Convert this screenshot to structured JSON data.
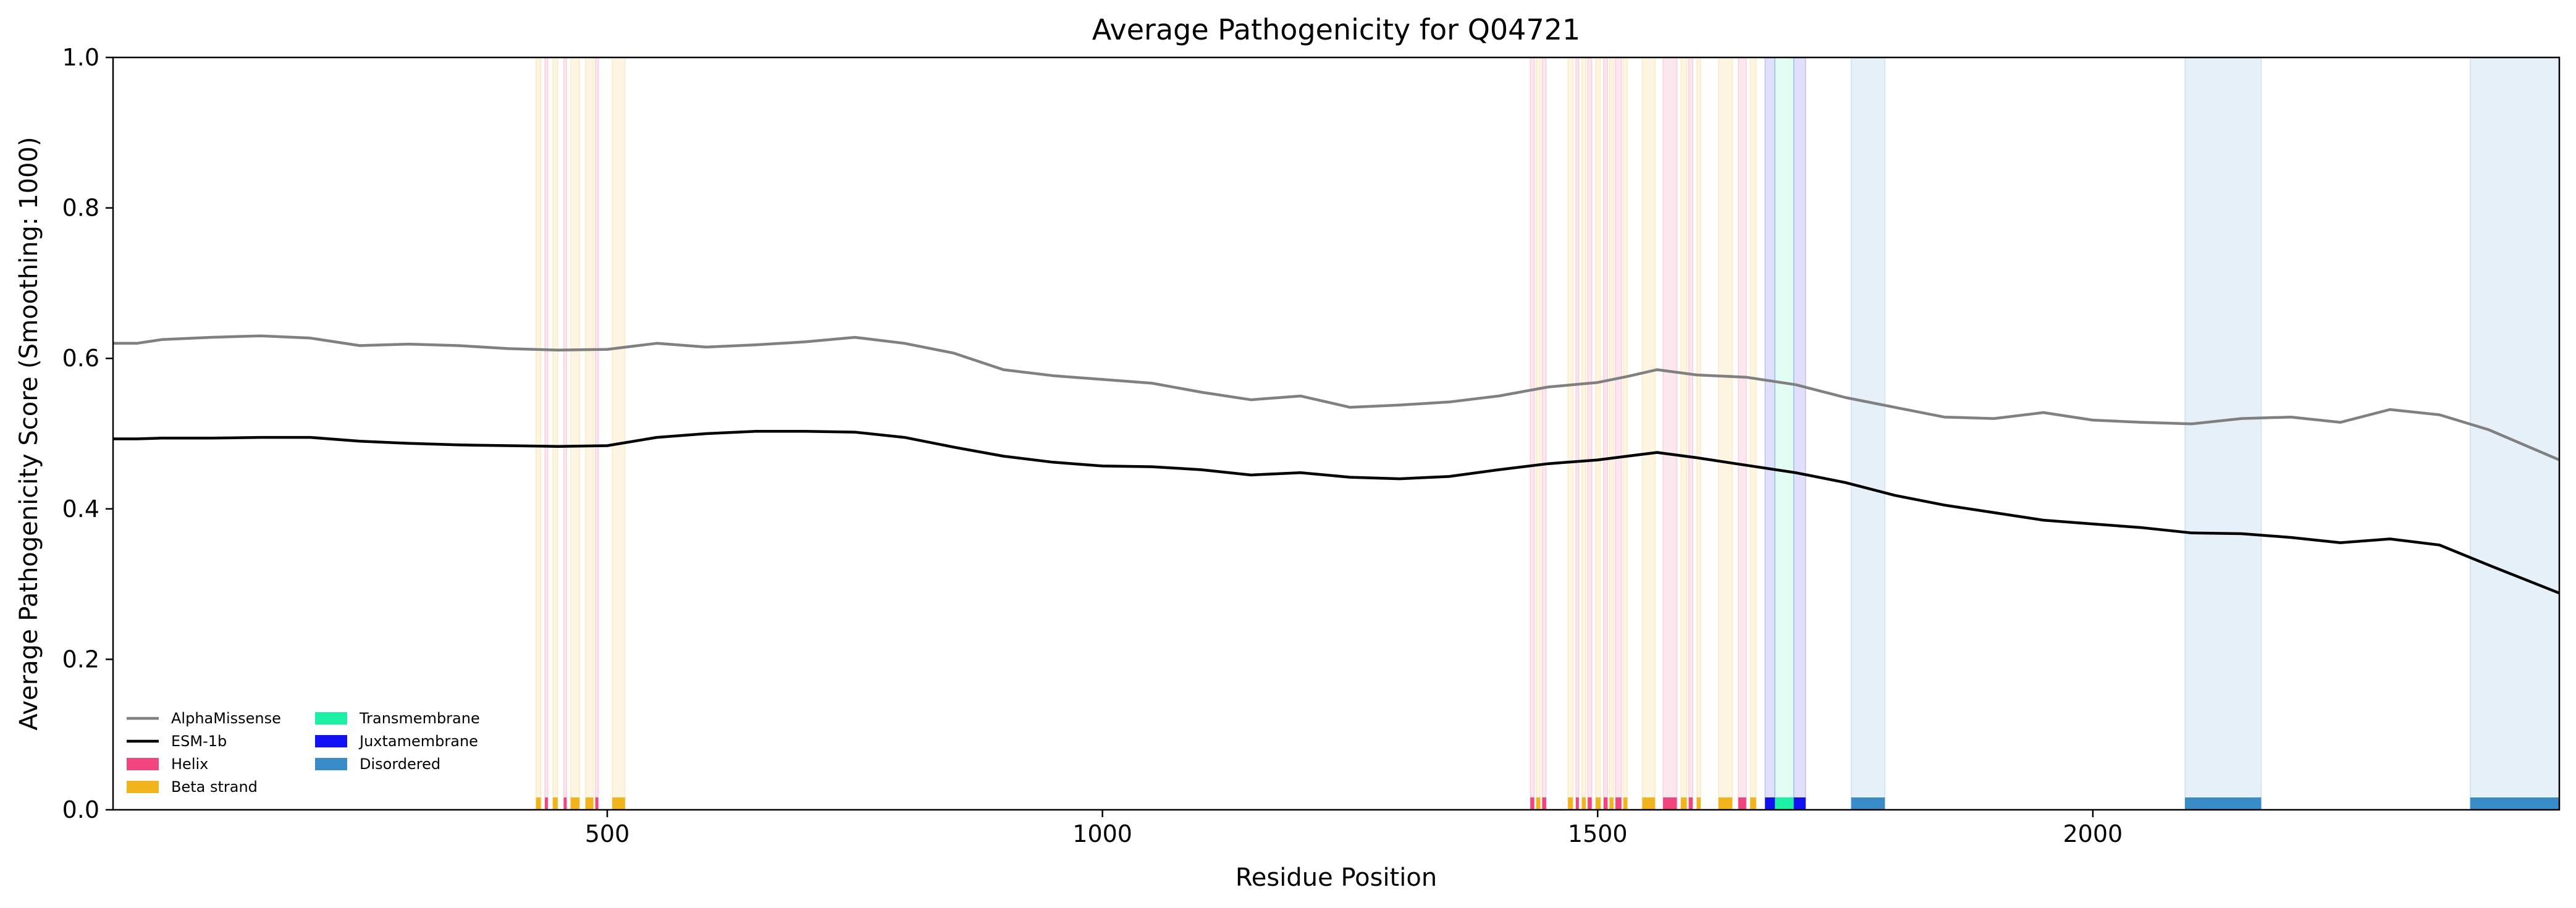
{
  "chart_data": {
    "type": "line",
    "title": "Average Pathogenicity for Q04721",
    "xlabel": "Residue Position",
    "ylabel": "Average Pathogenicity Score (Smoothing: 1000)",
    "xlim": [
      1,
      2471
    ],
    "ylim": [
      0.0,
      1.0
    ],
    "x_ticks": [
      500,
      1000,
      1500,
      2000
    ],
    "y_ticks": [
      0.0,
      0.2,
      0.4,
      0.6,
      0.8,
      1.0
    ],
    "x_tick_labels": [
      "500",
      "1000",
      "1500",
      "2000"
    ],
    "y_tick_labels": [
      "0.0",
      "0.2",
      "0.4",
      "0.6",
      "0.8",
      "1.0"
    ],
    "grid": false,
    "legend_position": "lower-left",
    "series": [
      {
        "name": "AlphaMissense",
        "color": "#808080",
        "x": [
          1,
          25,
          50,
          100,
          150,
          200,
          250,
          300,
          350,
          400,
          450,
          500,
          550,
          600,
          650,
          700,
          750,
          800,
          850,
          900,
          950,
          1000,
          1050,
          1100,
          1150,
          1200,
          1250,
          1300,
          1350,
          1400,
          1450,
          1500,
          1530,
          1560,
          1600,
          1650,
          1700,
          1750,
          1800,
          1850,
          1900,
          1950,
          2000,
          2050,
          2100,
          2150,
          2200,
          2250,
          2300,
          2350,
          2400,
          2471
        ],
        "values": [
          0.62,
          0.62,
          0.625,
          0.628,
          0.63,
          0.627,
          0.617,
          0.619,
          0.617,
          0.613,
          0.611,
          0.612,
          0.62,
          0.615,
          0.618,
          0.622,
          0.628,
          0.62,
          0.607,
          0.585,
          0.577,
          0.572,
          0.567,
          0.555,
          0.545,
          0.55,
          0.535,
          0.538,
          0.542,
          0.55,
          0.562,
          0.568,
          0.576,
          0.585,
          0.578,
          0.575,
          0.565,
          0.548,
          0.535,
          0.522,
          0.52,
          0.528,
          0.518,
          0.515,
          0.513,
          0.52,
          0.522,
          0.515,
          0.532,
          0.525,
          0.505,
          0.465
        ]
      },
      {
        "name": "ESM-1b",
        "color": "#000000",
        "x": [
          1,
          25,
          50,
          100,
          150,
          200,
          250,
          300,
          350,
          400,
          450,
          500,
          550,
          600,
          650,
          700,
          750,
          800,
          850,
          900,
          950,
          1000,
          1050,
          1100,
          1150,
          1200,
          1250,
          1300,
          1350,
          1400,
          1450,
          1500,
          1530,
          1560,
          1600,
          1650,
          1700,
          1750,
          1800,
          1850,
          1900,
          1950,
          2000,
          2050,
          2100,
          2150,
          2200,
          2250,
          2300,
          2350,
          2400,
          2471
        ],
        "values": [
          0.493,
          0.493,
          0.494,
          0.494,
          0.495,
          0.495,
          0.49,
          0.487,
          0.485,
          0.484,
          0.483,
          0.484,
          0.495,
          0.5,
          0.503,
          0.503,
          0.502,
          0.495,
          0.482,
          0.47,
          0.462,
          0.457,
          0.456,
          0.452,
          0.445,
          0.448,
          0.442,
          0.44,
          0.443,
          0.452,
          0.46,
          0.465,
          0.47,
          0.475,
          0.468,
          0.458,
          0.448,
          0.435,
          0.418,
          0.405,
          0.395,
          0.385,
          0.38,
          0.375,
          0.368,
          0.367,
          0.362,
          0.355,
          0.36,
          0.352,
          0.325,
          0.288
        ]
      }
    ],
    "regions": {
      "Helix": [
        [
          437,
          440
        ],
        [
          456,
          459
        ],
        [
          488,
          491
        ],
        [
          1432,
          1436
        ],
        [
          1444,
          1448
        ],
        [
          1478,
          1481
        ],
        [
          1490,
          1494
        ],
        [
          1506,
          1510
        ],
        [
          1518,
          1524
        ],
        [
          1566,
          1580
        ],
        [
          1592,
          1596
        ],
        [
          1642,
          1650
        ]
      ],
      "Beta strand": [
        [
          428,
          433
        ],
        [
          445,
          450
        ],
        [
          463,
          472
        ],
        [
          478,
          486
        ],
        [
          505,
          518
        ],
        [
          1438,
          1442
        ],
        [
          1470,
          1475
        ],
        [
          1484,
          1488
        ],
        [
          1498,
          1503
        ],
        [
          1512,
          1516
        ],
        [
          1526,
          1530
        ],
        [
          1545,
          1558
        ],
        [
          1584,
          1590
        ],
        [
          1600,
          1604
        ],
        [
          1622,
          1636
        ],
        [
          1654,
          1660
        ]
      ],
      "Transmembrane": [
        [
          1679,
          1698
        ]
      ],
      "Juxtamembrane": [
        [
          1669,
          1679
        ],
        [
          1698,
          1710
        ]
      ],
      "Disordered": [
        [
          1756,
          1790
        ],
        [
          2093,
          2170
        ],
        [
          2381,
          2471
        ]
      ]
    },
    "region_colors": {
      "Helix": "#f0457e",
      "Beta strand": "#f1b41c",
      "Transmembrane": "#1cf0a4",
      "Juxtamembrane": "#1010f0",
      "Disordered": "#3a8cc9"
    },
    "legend": [
      {
        "label": "AlphaMissense",
        "kind": "line",
        "color": "#808080"
      },
      {
        "label": "ESM-1b",
        "kind": "line",
        "color": "#000000"
      },
      {
        "label": "Helix",
        "kind": "patch",
        "color": "#f0457e"
      },
      {
        "label": "Beta strand",
        "kind": "patch",
        "color": "#f1b41c"
      },
      {
        "label": "Transmembrane",
        "kind": "patch",
        "color": "#1cf0a4"
      },
      {
        "label": "Juxtamembrane",
        "kind": "patch",
        "color": "#1010f0"
      },
      {
        "label": "Disordered",
        "kind": "patch",
        "color": "#3a8cc9"
      }
    ]
  }
}
